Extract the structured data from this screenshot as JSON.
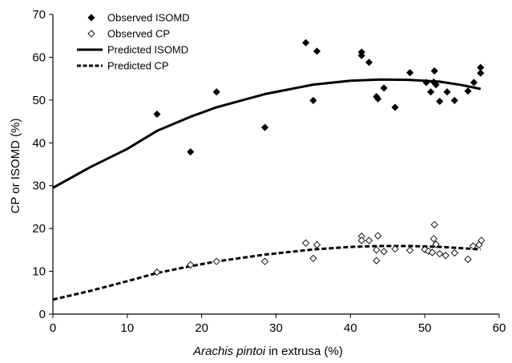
{
  "chart_data": {
    "type": "scatter",
    "title": "",
    "xlabel": "Arachis pintoi in extrusa (%)",
    "xlabel_italic_part": "Arachis pintoi",
    "xlabel_rest": " in extrusa (%)",
    "ylabel": "CP or ISOMD (%)",
    "xlim": [
      0,
      60
    ],
    "ylim": [
      0,
      70
    ],
    "xticks": [
      0,
      10,
      20,
      30,
      40,
      50,
      60
    ],
    "yticks": [
      0,
      10,
      20,
      30,
      40,
      50,
      60,
      70
    ],
    "grid": false,
    "legend_position": "top-left",
    "series": [
      {
        "name": "Observed ISOMD",
        "kind": "scatter",
        "marker": "filled-diamond",
        "points": [
          [
            14,
            46.7
          ],
          [
            18.5,
            37.9
          ],
          [
            22,
            51.9
          ],
          [
            28.5,
            43.6
          ],
          [
            34,
            63.4
          ],
          [
            35,
            49.9
          ],
          [
            35.5,
            61.4
          ],
          [
            41.5,
            61.2
          ],
          [
            41.5,
            60.4
          ],
          [
            42.5,
            58.8
          ],
          [
            43.5,
            50.8
          ],
          [
            43.7,
            50.3
          ],
          [
            44.5,
            52.8
          ],
          [
            46,
            48.3
          ],
          [
            48,
            56.4
          ],
          [
            50.2,
            54.1
          ],
          [
            50.8,
            51.9
          ],
          [
            51.3,
            56.8
          ],
          [
            51.5,
            53.6
          ],
          [
            51.2,
            54.2
          ],
          [
            52,
            49.7
          ],
          [
            53,
            51.9
          ],
          [
            54,
            49.9
          ],
          [
            55.8,
            52.1
          ],
          [
            56.6,
            54.1
          ],
          [
            57.5,
            57.6
          ],
          [
            57.5,
            56.3
          ]
        ]
      },
      {
        "name": "Observed CP",
        "kind": "scatter",
        "marker": "open-diamond",
        "points": [
          [
            14,
            9.8
          ],
          [
            18.5,
            11.5
          ],
          [
            22,
            12.3
          ],
          [
            28.5,
            12.3
          ],
          [
            34,
            16.6
          ],
          [
            35,
            13.0
          ],
          [
            35.5,
            16.2
          ],
          [
            41.5,
            18.2
          ],
          [
            41.5,
            17.2
          ],
          [
            42.5,
            17.2
          ],
          [
            43.5,
            12.5
          ],
          [
            43.7,
            18.3
          ],
          [
            43.5,
            15.0
          ],
          [
            44.5,
            14.6
          ],
          [
            46,
            15.2
          ],
          [
            48,
            14.9
          ],
          [
            50,
            15.1
          ],
          [
            50.5,
            14.7
          ],
          [
            51,
            14.4
          ],
          [
            51.2,
            17.6
          ],
          [
            51.3,
            20.9
          ],
          [
            51.5,
            16.3
          ],
          [
            52,
            14.1
          ],
          [
            52.8,
            13.7
          ],
          [
            54,
            14.3
          ],
          [
            55.8,
            12.8
          ],
          [
            56.5,
            15.9
          ],
          [
            57.3,
            16.2
          ],
          [
            57.6,
            17.2
          ]
        ]
      },
      {
        "name": "Predicted ISOMD",
        "kind": "line",
        "style": "solid",
        "color": "#000000",
        "points": [
          [
            0,
            29.5
          ],
          [
            5,
            34.3
          ],
          [
            10,
            38.6
          ],
          [
            14,
            42.8
          ],
          [
            18.5,
            46.1
          ],
          [
            22,
            48.3
          ],
          [
            28.5,
            51.4
          ],
          [
            35,
            53.6
          ],
          [
            40,
            54.5
          ],
          [
            44,
            54.8
          ],
          [
            48,
            54.7
          ],
          [
            52,
            54.3
          ],
          [
            55,
            53.5
          ],
          [
            57.5,
            52.6
          ]
        ]
      },
      {
        "name": "Predicted CP",
        "kind": "line",
        "style": "dashed",
        "color": "#000000",
        "points": [
          [
            0,
            3.4
          ],
          [
            5,
            5.4
          ],
          [
            10,
            7.7
          ],
          [
            14,
            9.6
          ],
          [
            18.5,
            11.2
          ],
          [
            22,
            12.3
          ],
          [
            28.5,
            13.9
          ],
          [
            35,
            15.1
          ],
          [
            40,
            15.7
          ],
          [
            44,
            15.9
          ],
          [
            48,
            15.9
          ],
          [
            52,
            15.7
          ],
          [
            55,
            15.4
          ],
          [
            57.5,
            15.1
          ]
        ]
      }
    ]
  }
}
